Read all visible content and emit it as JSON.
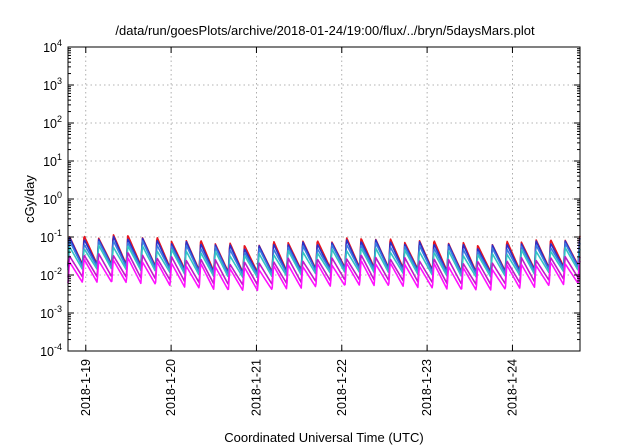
{
  "chart_data": {
    "type": "line",
    "title": "/data/run/goesPlots/archive/2018-01-24/19:00/flux/../bryn/5daysMars.plot",
    "xlabel": "Coordinated Universal Time (UTC)",
    "ylabel": "cGy/day",
    "yscale": "log",
    "ylim": [
      0.0001,
      10000
    ],
    "ytick_labels": [
      {
        "base": "10",
        "exp": "-4"
      },
      {
        "base": "10",
        "exp": "-3"
      },
      {
        "base": "10",
        "exp": "-2"
      },
      {
        "base": "10",
        "exp": "-1"
      },
      {
        "base": "10",
        "exp": "0"
      },
      {
        "base": "10",
        "exp": "1"
      },
      {
        "base": "10",
        "exp": "2"
      },
      {
        "base": "10",
        "exp": "3"
      },
      {
        "base": "10",
        "exp": "4"
      }
    ],
    "xlim": [
      "2018-01-18T19:00",
      "2018-01-24T19:00"
    ],
    "xtick_labels": [
      "2018-1-19",
      "2018-1-20",
      "2018-1-21",
      "2018-1-22",
      "2018-1-23",
      "2018-1-24"
    ],
    "grid": true,
    "oscillation_period_hours": 4.1,
    "series": [
      {
        "color": "#e8141e",
        "low": 0.015,
        "peak": 0.085
      },
      {
        "color": "#2a2fc8",
        "low": 0.014,
        "peak": 0.075
      },
      {
        "color": "#3a7be0",
        "low": 0.013,
        "peak": 0.06
      },
      {
        "color": "#33c4c4",
        "low": 0.011,
        "peak": 0.045
      },
      {
        "color": "#c01ac8",
        "low": 0.007,
        "peak": 0.028
      },
      {
        "color": "#ff10ff",
        "low": 0.005,
        "peak": 0.02
      }
    ]
  }
}
